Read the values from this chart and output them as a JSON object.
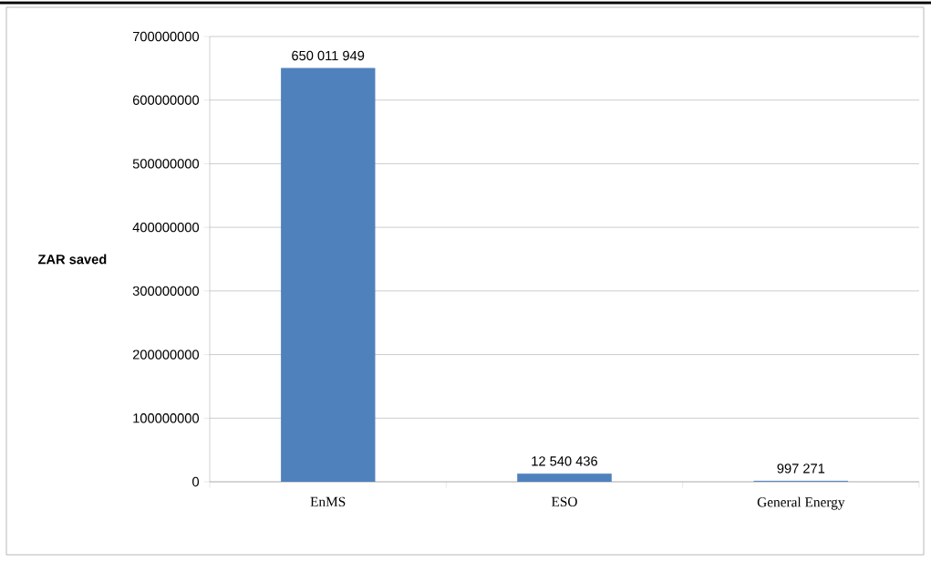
{
  "chart_data": {
    "type": "bar",
    "ylabel": "ZAR saved",
    "categories": [
      "EnMS",
      "ESO",
      "General Energy"
    ],
    "values": [
      650011949,
      12540436,
      997271
    ],
    "value_labels": [
      "650 011 949",
      "12 540 436",
      "997 271"
    ],
    "color": "#4f81bd",
    "ylim": [
      0,
      700000000
    ],
    "yticks": [
      0,
      100000000,
      200000000,
      300000000,
      400000000,
      500000000,
      600000000,
      700000000
    ],
    "grid": "y"
  }
}
